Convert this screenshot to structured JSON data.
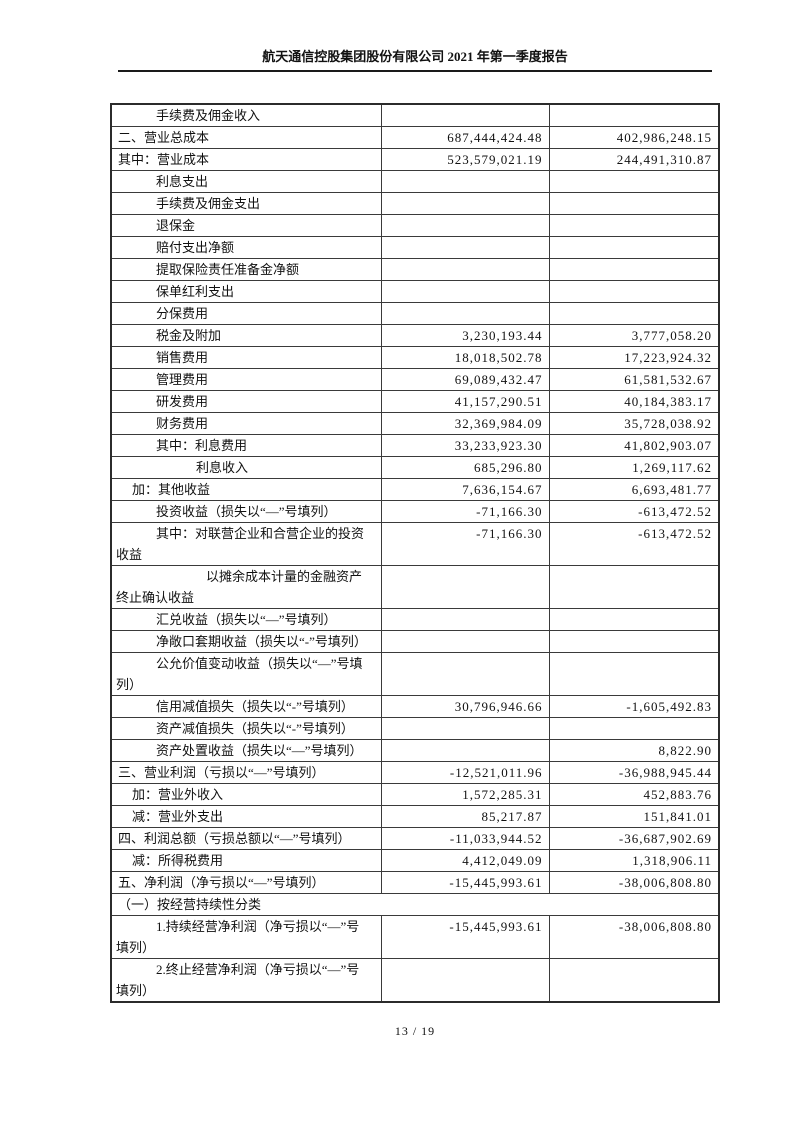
{
  "header": {
    "title": "航天通信控股集团股份有限公司 2021 年第一季度报告"
  },
  "table": {
    "rows": [
      {
        "label": "手续费及佣金收入",
        "indent": 2,
        "current": "",
        "prior": ""
      },
      {
        "label": "二、营业总成本",
        "indent": 0,
        "current": "687,444,424.48",
        "prior": "402,986,248.15"
      },
      {
        "label": "其中：营业成本",
        "indent": 0,
        "current": "523,579,021.19",
        "prior": "244,491,310.87"
      },
      {
        "label": "利息支出",
        "indent": 2,
        "current": "",
        "prior": ""
      },
      {
        "label": "手续费及佣金支出",
        "indent": 2,
        "current": "",
        "prior": ""
      },
      {
        "label": "退保金",
        "indent": 2,
        "current": "",
        "prior": ""
      },
      {
        "label": "赔付支出净额",
        "indent": 2,
        "current": "",
        "prior": ""
      },
      {
        "label": "提取保险责任准备金净额",
        "indent": 2,
        "current": "",
        "prior": ""
      },
      {
        "label": "保单红利支出",
        "indent": 2,
        "current": "",
        "prior": ""
      },
      {
        "label": "分保费用",
        "indent": 2,
        "current": "",
        "prior": ""
      },
      {
        "label": "税金及附加",
        "indent": 2,
        "current": "3,230,193.44",
        "prior": "3,777,058.20"
      },
      {
        "label": "销售费用",
        "indent": 2,
        "current": "18,018,502.78",
        "prior": "17,223,924.32"
      },
      {
        "label": "管理费用",
        "indent": 2,
        "current": "69,089,432.47",
        "prior": "61,581,532.67"
      },
      {
        "label": "研发费用",
        "indent": 2,
        "current": "41,157,290.51",
        "prior": "40,184,383.17"
      },
      {
        "label": "财务费用",
        "indent": 2,
        "current": "32,369,984.09",
        "prior": "35,728,038.92"
      },
      {
        "label": "其中：利息费用",
        "indent": 2,
        "current": "33,233,923.30",
        "prior": "41,802,903.07"
      },
      {
        "label": "利息收入",
        "indent": 3,
        "current": "685,296.80",
        "prior": "1,269,117.62"
      },
      {
        "label": "加：其他收益",
        "indent": 1,
        "current": "7,636,154.67",
        "prior": "6,693,481.77"
      },
      {
        "label": "投资收益（损失以“—”号填列）",
        "indent": 2,
        "current": "-71,166.30",
        "prior": "-613,472.52"
      },
      {
        "label": "其中：对联营企业和合营企业的投资收益",
        "indent": 2,
        "current": "-71,166.30",
        "prior": "-613,472.52"
      },
      {
        "label": "以摊余成本计量的金融资产终止确认收益",
        "indent": 4,
        "current": "",
        "prior": ""
      },
      {
        "label": "汇兑收益（损失以“—”号填列）",
        "indent": 2,
        "current": "",
        "prior": ""
      },
      {
        "label": "净敞口套期收益（损失以“-”号填列）",
        "indent": 2,
        "current": "",
        "prior": ""
      },
      {
        "label": "公允价值变动收益（损失以“—”号填列）",
        "indent": 2,
        "current": "",
        "prior": ""
      },
      {
        "label": "信用减值损失（损失以“-”号填列）",
        "indent": 2,
        "current": "30,796,946.66",
        "prior": "-1,605,492.83"
      },
      {
        "label": "资产减值损失（损失以“-”号填列）",
        "indent": 2,
        "current": "",
        "prior": ""
      },
      {
        "label": "资产处置收益（损失以“—”号填列）",
        "indent": 2,
        "current": "",
        "prior": "8,822.90"
      },
      {
        "label": "三、营业利润（亏损以“—”号填列）",
        "indent": 0,
        "current": "-12,521,011.96",
        "prior": "-36,988,945.44"
      },
      {
        "label": "加：营业外收入",
        "indent": 1,
        "current": "1,572,285.31",
        "prior": "452,883.76"
      },
      {
        "label": "减：营业外支出",
        "indent": 1,
        "current": "85,217.87",
        "prior": "151,841.01"
      },
      {
        "label": "四、利润总额（亏损总额以“—”号填列）",
        "indent": 0,
        "current": "-11,033,944.52",
        "prior": "-36,687,902.69"
      },
      {
        "label": "减：所得税费用",
        "indent": 1,
        "current": "4,412,049.09",
        "prior": "1,318,906.11"
      },
      {
        "label": "五、净利润（净亏损以“—”号填列）",
        "indent": 0,
        "current": "-15,445,993.61",
        "prior": "-38,006,808.80"
      },
      {
        "label": "（一）按经营持续性分类",
        "indent": 0,
        "merged": true
      },
      {
        "label": "1.持续经营净利润（净亏损以“—”号填列）",
        "indent": 2,
        "current": "-15,445,993.61",
        "prior": "-38,006,808.80"
      },
      {
        "label": "2.终止经营净利润（净亏损以“—”号填列）",
        "indent": 2,
        "current": "",
        "prior": ""
      }
    ]
  },
  "footer": {
    "page_label": "13 / 19"
  }
}
